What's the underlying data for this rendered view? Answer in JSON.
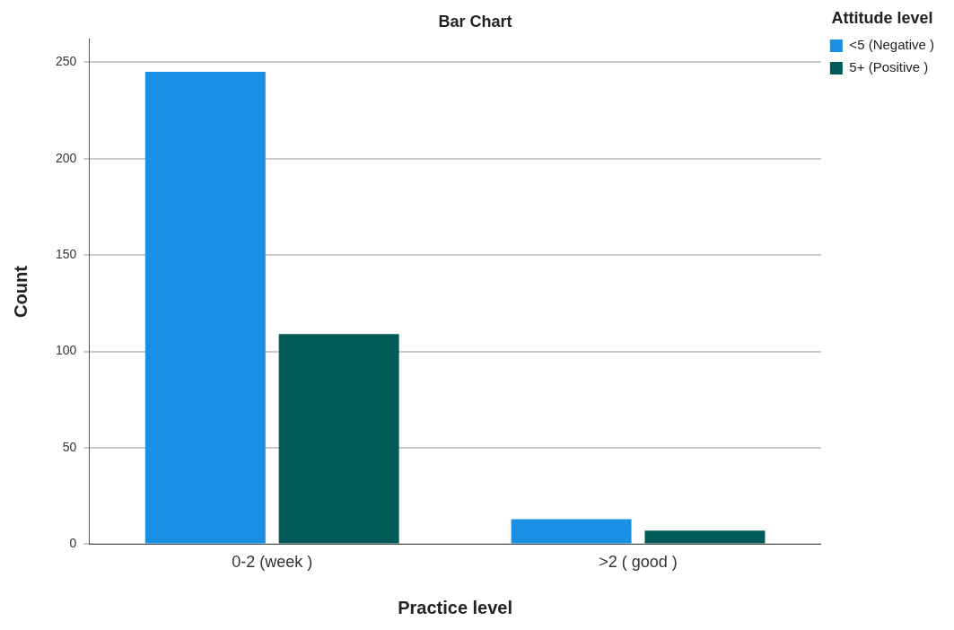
{
  "chart_data": {
    "type": "bar",
    "title": "Bar Chart",
    "xlabel": "Practice level",
    "ylabel": "Count",
    "legend_title": "Attitude level",
    "categories": [
      "0-2 (week )",
      ">2 ( good )"
    ],
    "series": [
      {
        "name": "<5 (Negative )",
        "color": "#1a8fe3",
        "values": [
          245,
          13
        ]
      },
      {
        "name": "5+ (Positive )",
        "color": "#005a57",
        "values": [
          109,
          7
        ]
      }
    ],
    "ylim": [
      0,
      262
    ],
    "yticks": [
      0,
      50,
      100,
      150,
      200,
      250
    ],
    "grid": "y",
    "legend": "right"
  }
}
